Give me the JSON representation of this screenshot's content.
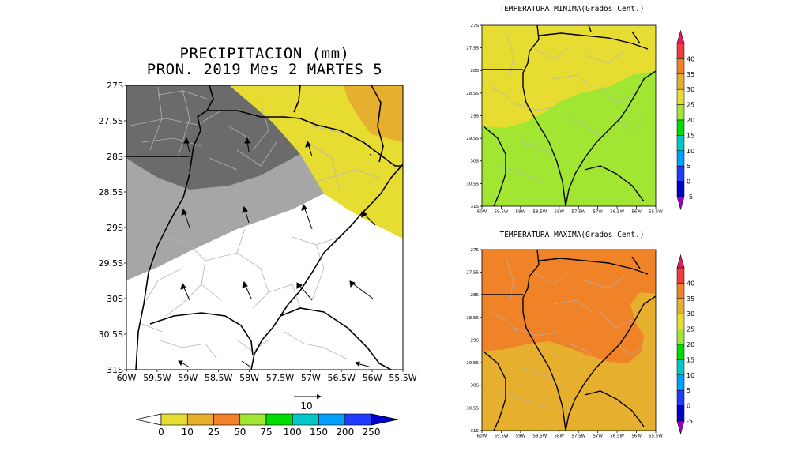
{
  "precip_map": {
    "title_line1": "PRECIPITACION (mm)",
    "title_line2": "PRON. 2019 Mes 2 MARTES 5",
    "lat_labels": [
      "27S",
      "27.5S",
      "28S",
      "28.5S",
      "29S",
      "29.5S",
      "30S",
      "30.5S",
      "31S"
    ],
    "lon_labels": [
      "60W",
      "59.5W",
      "59W",
      "58.5W",
      "58W",
      "57.5W",
      "57W",
      "56.5W",
      "56W",
      "55.5W"
    ],
    "vector_ref_label": "10",
    "colorbar_labels": [
      "0",
      "10",
      "25",
      "50",
      "75",
      "100",
      "150",
      "200",
      "250"
    ],
    "colorbar_colors": [
      "#ffffff",
      "#e6dc32",
      "#e6af2d",
      "#f08228",
      "#a0e632",
      "#00dc00",
      "#00c8c8",
      "#00a0ff",
      "#1e3cff",
      "#0000c8"
    ]
  },
  "tmin_map": {
    "title": "TEMPERATURA MINIMA(Grados Cent.)",
    "lat_labels": [
      "27S",
      "27.5S",
      "28S",
      "28.5S",
      "29S",
      "29.5S",
      "30S",
      "30.5S",
      "31S"
    ],
    "lon_labels": [
      "60W",
      "59.5W",
      "59W",
      "58.5W",
      "58W",
      "57.5W",
      "57W",
      "56.5W",
      "56W",
      "55.5W"
    ],
    "colorbar_labels": [
      "40",
      "35",
      "30",
      "25",
      "20",
      "15",
      "10",
      "5",
      "0",
      "-5"
    ]
  },
  "tmax_map": {
    "title": "TEMPERATURA MAXIMA(Grados Cent.)",
    "lat_labels": [
      "27S",
      "27.5S",
      "28S",
      "28.5S",
      "29S",
      "29.5S",
      "30S",
      "30.5S",
      "31S"
    ],
    "lon_labels": [
      "60W",
      "59.5W",
      "59W",
      "58.5W",
      "58W",
      "57.5W",
      "57W",
      "56.5W",
      "56W",
      "55.5W"
    ],
    "colorbar_labels": [
      "40",
      "35",
      "30",
      "25",
      "20",
      "15",
      "10",
      "5",
      "0",
      "-5"
    ]
  },
  "temp_colorbar_colors": [
    "#dc1e64",
    "#f03c3c",
    "#f08228",
    "#e6af2d",
    "#e6dc32",
    "#a0e632",
    "#00dc00",
    "#00c8c8",
    "#00a0ff",
    "#1e3cff",
    "#0000c8",
    "#a000c8"
  ]
}
